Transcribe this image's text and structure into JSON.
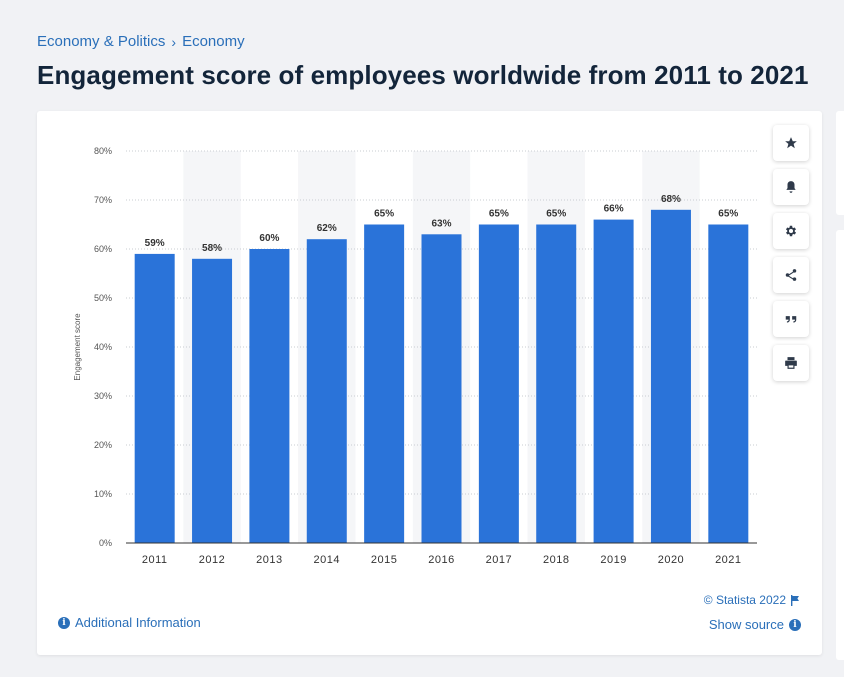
{
  "breadcrumb": {
    "items": [
      "Economy & Politics",
      "Economy"
    ],
    "separator": "›"
  },
  "title": "Engagement score of employees worldwide from 2011 to 2021",
  "toolbar": {
    "icons": [
      "star-icon",
      "bell-icon",
      "gear-icon",
      "share-icon",
      "quote-icon",
      "print-icon"
    ]
  },
  "footer": {
    "additional_info": "Additional Information",
    "copyright": "© Statista 2022",
    "show_source": "Show source"
  },
  "colors": {
    "bar": "#2a73d9",
    "link": "#2a6fb9",
    "band": "#f5f6f8"
  },
  "chart_data": {
    "type": "bar",
    "categories": [
      "2011",
      "2012",
      "2013",
      "2014",
      "2015",
      "2016",
      "2017",
      "2018",
      "2019",
      "2020",
      "2021"
    ],
    "values": [
      59,
      58,
      60,
      62,
      65,
      63,
      65,
      65,
      66,
      68,
      65
    ],
    "data_labels": [
      "59%",
      "58%",
      "60%",
      "62%",
      "65%",
      "63%",
      "65%",
      "65%",
      "66%",
      "68%",
      "65%"
    ],
    "ylabel": "Engagement score",
    "xlabel": "",
    "ylim": [
      0,
      80
    ],
    "yticks": [
      "0%",
      "10%",
      "20%",
      "30%",
      "40%",
      "50%",
      "60%",
      "70%",
      "80%"
    ],
    "grid": true,
    "legend": "none"
  }
}
